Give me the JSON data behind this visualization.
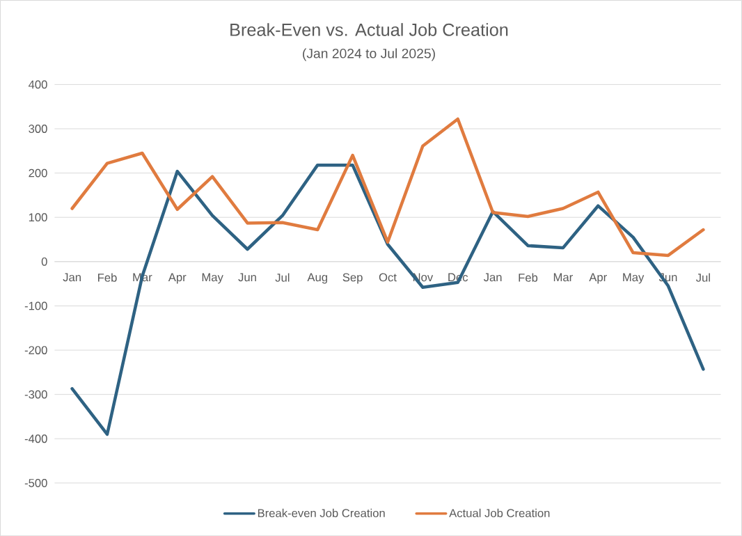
{
  "chart_data": {
    "type": "line",
    "title": "Break-Even  vs. Actual Job Creation",
    "subtitle": "(Jan 2024 to Jul 2025)",
    "categories": [
      "Jan",
      "Feb",
      "Mar",
      "Apr",
      "May",
      "Jun",
      "Jul",
      "Aug",
      "Sep",
      "Oct",
      "Nov",
      "Dec",
      "Jan",
      "Feb",
      "Mar",
      "Apr",
      "May",
      "Jun",
      "Jul"
    ],
    "series": [
      {
        "name": "Break-even Job Creation",
        "color": "#2e6283",
        "values": [
          -287,
          -390,
          -33,
          204,
          104,
          28,
          104,
          218,
          218,
          39,
          -58,
          -47,
          113,
          36,
          31,
          126,
          55,
          -55,
          -243
        ]
      },
      {
        "name": "Actual Job Creation",
        "color": "#e07b3f",
        "values": [
          120,
          222,
          245,
          118,
          192,
          87,
          88,
          72,
          240,
          44,
          261,
          322,
          111,
          102,
          120,
          157,
          20,
          14,
          72
        ]
      }
    ],
    "ylim": [
      -500,
      400
    ],
    "yticks": [
      -500,
      -400,
      -300,
      -200,
      -100,
      0,
      100,
      200,
      300,
      400
    ],
    "grid": "y",
    "legend": "bottom",
    "marker": "none",
    "line_style": "solid"
  }
}
